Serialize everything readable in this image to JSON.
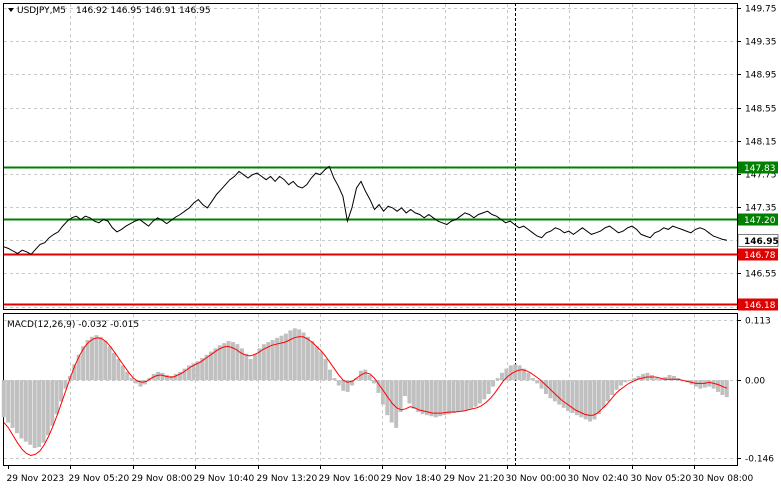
{
  "header": {
    "symbol_label": "USDJPY,M5",
    "ohlc": "146.92 146.95 146.91 146.95"
  },
  "macd_label": "MACD(12,26,9) -0.032 -0.015",
  "colors": {
    "price_line": "#000000",
    "support_resistance_green": "#008000",
    "support_resistance_red": "#e00000",
    "macd_histogram": "#c0c0c0",
    "macd_signal": "#ff0000",
    "grid": "#c8c8c8",
    "badge_current": "#ffffff"
  },
  "chart_data": [
    {
      "type": "line",
      "title": "",
      "price_axis_ticks": [
        "149.75",
        "149.35",
        "148.95",
        "148.55",
        "148.15",
        "147.75",
        "147.35",
        "146.95",
        "146.55",
        "146.15"
      ],
      "ylim": [
        146.12,
        149.8
      ],
      "time_labels": [
        "29 Nov 2023",
        "29 Nov 05:20",
        "29 Nov 08:00",
        "29 Nov 10:40",
        "29 Nov 13:20",
        "29 Nov 16:00",
        "29 Nov 18:40",
        "29 Nov 21:20",
        "30 Nov 00:00",
        "30 Nov 02:40",
        "30 Nov 05:20",
        "30 Nov 08:00"
      ],
      "levels": [
        {
          "value": 147.83,
          "label": "147.83",
          "color": "#008000"
        },
        {
          "value": 147.2,
          "label": "147.20",
          "color": "#008000"
        },
        {
          "value": 146.78,
          "label": "146.78",
          "color": "#e00000"
        },
        {
          "value": 146.18,
          "label": "146.18",
          "color": "#e00000"
        }
      ],
      "current_price": {
        "value": 146.95,
        "label": "146.95"
      },
      "series": [
        {
          "values": [
            146.87,
            146.85,
            146.82,
            146.79,
            146.83,
            146.81,
            146.78,
            146.84,
            146.9,
            146.92,
            146.98,
            147.02,
            147.05,
            147.12,
            147.18,
            147.22,
            147.24,
            147.2,
            147.24,
            147.22,
            147.18,
            147.16,
            147.2,
            147.18,
            147.1,
            147.05,
            147.08,
            147.12,
            147.15,
            147.18,
            147.2,
            147.16,
            147.12,
            147.18,
            147.22,
            147.19,
            147.15,
            147.19,
            147.23,
            147.26,
            147.3,
            147.34,
            147.4,
            147.44,
            147.38,
            147.34,
            147.42,
            147.5,
            147.56,
            147.62,
            147.68,
            147.72,
            147.78,
            147.74,
            147.7,
            147.74,
            147.76,
            147.72,
            147.68,
            147.72,
            147.66,
            147.72,
            147.68,
            147.62,
            147.66,
            147.6,
            147.58,
            147.62,
            147.7,
            147.76,
            147.74,
            147.8,
            147.84,
            147.7,
            147.6,
            147.48,
            147.18,
            147.34,
            147.58,
            147.66,
            147.54,
            147.44,
            147.32,
            147.38,
            147.3,
            147.36,
            147.34,
            147.3,
            147.34,
            147.28,
            147.32,
            147.28,
            147.26,
            147.22,
            147.26,
            147.22,
            147.18,
            147.16,
            147.14,
            147.18,
            147.2,
            147.24,
            147.28,
            147.26,
            147.22,
            147.26,
            147.28,
            147.3,
            147.26,
            147.24,
            147.2,
            147.16,
            147.18,
            147.14,
            147.1,
            147.12,
            147.08,
            147.04,
            147.0,
            146.98,
            147.04,
            147.06,
            147.1,
            147.08,
            147.04,
            147.06,
            147.02,
            147.06,
            147.1,
            147.06,
            147.02,
            147.04,
            147.06,
            147.1,
            147.12,
            147.08,
            147.04,
            147.06,
            147.1,
            147.12,
            147.08,
            147.02,
            147.0,
            146.98,
            147.04,
            147.06,
            147.1,
            147.08,
            147.12,
            147.1,
            147.08,
            147.06,
            147.04,
            147.08,
            147.1,
            147.08,
            147.04,
            147.0,
            146.98,
            146.96,
            146.95
          ]
        }
      ]
    },
    {
      "type": "bar",
      "title": "MACD(12,26,9) -0.032 -0.015",
      "axis_ticks": [
        "0.113",
        "0.00",
        "-0.146"
      ],
      "ylim": [
        -0.16,
        0.125
      ],
      "series": [
        {
          "name": "MACD",
          "values": [
            -0.07,
            -0.08,
            -0.09,
            -0.1,
            -0.11,
            -0.116,
            -0.122,
            -0.128,
            -0.126,
            -0.118,
            -0.104,
            -0.086,
            -0.064,
            -0.04,
            -0.016,
            0.008,
            0.03,
            0.048,
            0.064,
            0.076,
            0.082,
            0.085,
            0.082,
            0.075,
            0.064,
            0.052,
            0.04,
            0.028,
            0.016,
            0.004,
            -0.006,
            -0.012,
            -0.008,
            0.004,
            0.012,
            0.016,
            0.014,
            0.01,
            0.008,
            0.012,
            0.016,
            0.022,
            0.028,
            0.032,
            0.036,
            0.042,
            0.048,
            0.054,
            0.06,
            0.066,
            0.07,
            0.074,
            0.072,
            0.068,
            0.06,
            0.05,
            0.04,
            0.05,
            0.06,
            0.068,
            0.072,
            0.076,
            0.08,
            0.084,
            0.088,
            0.094,
            0.098,
            0.096,
            0.09,
            0.082,
            0.074,
            0.064,
            0.054,
            0.04,
            0.02,
            0.004,
            -0.01,
            -0.02,
            -0.022,
            -0.01,
            0.004,
            0.018,
            0.02,
            0.01,
            -0.006,
            -0.024,
            -0.046,
            -0.066,
            -0.08,
            -0.09,
            -0.06,
            -0.03,
            -0.044,
            -0.054,
            -0.06,
            -0.064,
            -0.066,
            -0.068,
            -0.07,
            -0.068,
            -0.066,
            -0.064,
            -0.062,
            -0.06,
            -0.058,
            -0.056,
            -0.054,
            -0.05,
            -0.044,
            -0.036,
            -0.026,
            -0.012,
            0.004,
            0.014,
            0.022,
            0.028,
            0.03,
            0.028,
            0.022,
            0.014,
            0.004,
            -0.006,
            -0.016,
            -0.026,
            -0.034,
            -0.04,
            -0.046,
            -0.052,
            -0.058,
            -0.062,
            -0.066,
            -0.07,
            -0.074,
            -0.078,
            -0.074,
            -0.064,
            -0.052,
            -0.04,
            -0.028,
            -0.018,
            -0.01,
            -0.004,
            0.0,
            0.004,
            0.008,
            0.012,
            0.014,
            0.01,
            0.004,
            0.002,
            0.006,
            0.01,
            0.008,
            0.004,
            0.0,
            -0.004,
            -0.008,
            -0.012,
            -0.016,
            -0.014,
            -0.012,
            -0.016,
            -0.022,
            -0.028,
            -0.032
          ]
        },
        {
          "name": "Signal",
          "values": [
            -0.08,
            -0.09,
            -0.104,
            -0.118,
            -0.13,
            -0.138,
            -0.142,
            -0.14,
            -0.134,
            -0.122,
            -0.106,
            -0.086,
            -0.064,
            -0.04,
            -0.016,
            0.008,
            0.03,
            0.048,
            0.062,
            0.072,
            0.078,
            0.08,
            0.078,
            0.072,
            0.062,
            0.05,
            0.038,
            0.026,
            0.014,
            0.004,
            -0.002,
            -0.004,
            -0.002,
            0.004,
            0.008,
            0.01,
            0.008,
            0.006,
            0.006,
            0.01,
            0.014,
            0.02,
            0.026,
            0.03,
            0.034,
            0.04,
            0.046,
            0.052,
            0.058,
            0.062,
            0.064,
            0.062,
            0.058,
            0.052,
            0.048,
            0.046,
            0.048,
            0.052,
            0.058,
            0.062,
            0.066,
            0.068,
            0.07,
            0.072,
            0.076,
            0.08,
            0.082,
            0.082,
            0.078,
            0.072,
            0.064,
            0.056,
            0.046,
            0.034,
            0.022,
            0.01,
            0.0,
            -0.004,
            -0.002,
            0.004,
            0.01,
            0.014,
            0.012,
            0.004,
            -0.008,
            -0.02,
            -0.032,
            -0.044,
            -0.052,
            -0.056,
            -0.054,
            -0.05,
            -0.052,
            -0.056,
            -0.058,
            -0.06,
            -0.062,
            -0.062,
            -0.062,
            -0.061,
            -0.06,
            -0.06,
            -0.059,
            -0.058,
            -0.056,
            -0.054,
            -0.052,
            -0.048,
            -0.042,
            -0.034,
            -0.024,
            -0.012,
            0.0,
            0.008,
            0.014,
            0.018,
            0.02,
            0.018,
            0.014,
            0.008,
            0.002,
            -0.006,
            -0.014,
            -0.022,
            -0.03,
            -0.038,
            -0.044,
            -0.05,
            -0.056,
            -0.06,
            -0.064,
            -0.066,
            -0.066,
            -0.062,
            -0.054,
            -0.046,
            -0.036,
            -0.026,
            -0.018,
            -0.012,
            -0.006,
            -0.002,
            0.002,
            0.004,
            0.006,
            0.006,
            0.006,
            0.004,
            0.002,
            0.002,
            0.002,
            0.002,
            0.0,
            -0.002,
            -0.004,
            -0.006,
            -0.006,
            -0.006,
            -0.004,
            -0.006,
            -0.008,
            -0.012,
            -0.015
          ]
        }
      ]
    }
  ]
}
